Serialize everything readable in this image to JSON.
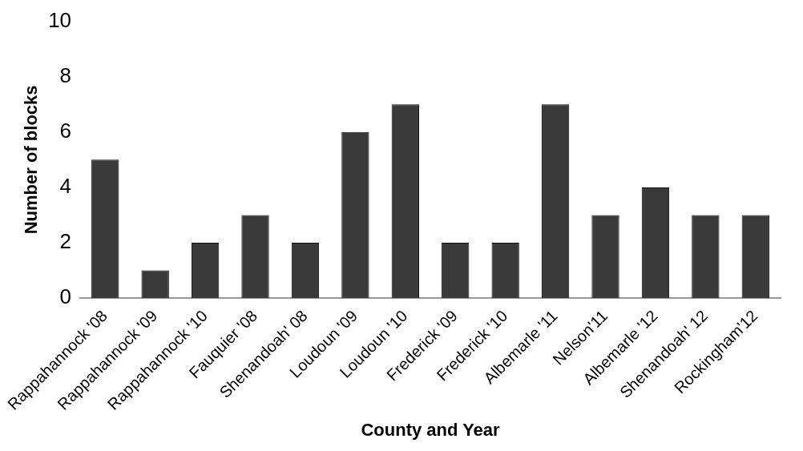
{
  "chart_data": {
    "type": "bar",
    "xlabel": "County and Year",
    "ylabel": "Number of blocks",
    "categories": [
      "Rappahannock '08",
      "Rappahannock '09",
      "Rappahannock '10",
      "Fauquier '08",
      "Shenandoah' 08",
      "Loudoun '09",
      "Loudoun '10",
      "Frederick '09",
      "Frederick '10",
      "Albemarle '11",
      "Nelson'11",
      "Albemarle '12",
      "Shenandoah' 12",
      "Rockingham'12"
    ],
    "values": [
      5,
      1,
      2,
      3,
      2,
      6,
      7,
      2,
      2,
      7,
      3,
      4,
      3,
      3
    ],
    "color": "#3a3a3a",
    "ylim": [
      0,
      10
    ],
    "yticks": [
      0,
      2,
      4,
      6,
      8,
      10
    ],
    "grid": false
  }
}
